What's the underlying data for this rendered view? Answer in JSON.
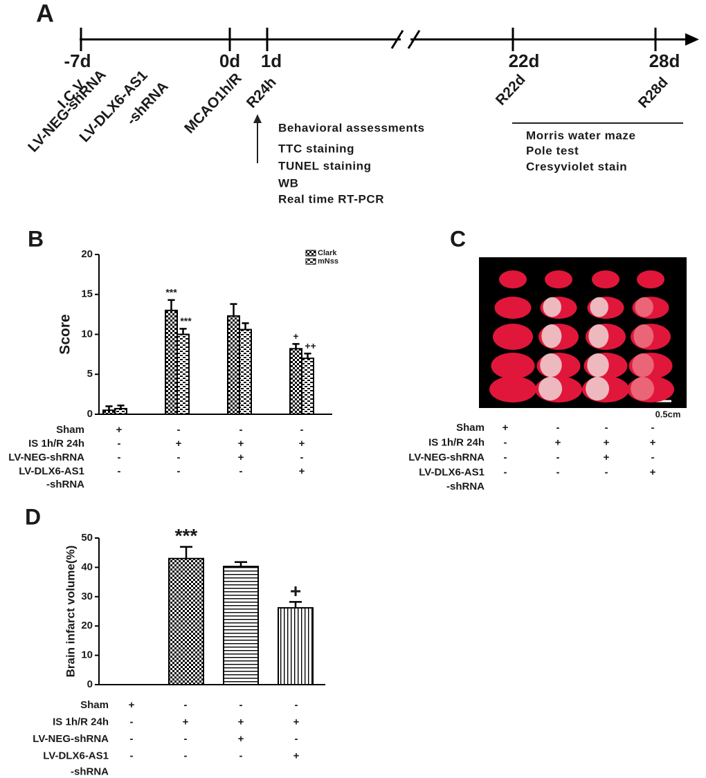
{
  "panels": {
    "a": "A",
    "b": "B",
    "c": "C",
    "d": "D"
  },
  "timeline": {
    "ticks": [
      "-7d",
      "0d",
      "1d",
      "22d",
      "28d"
    ],
    "rotated_labels": [
      "I.C.V",
      "LV-NEG-shRNA",
      "LV-DLX6-AS1",
      "-shRNA",
      "MCAO1h/R",
      "R24h",
      "R22d",
      "R28d"
    ],
    "assessments_24h": [
      "Behavioral assessments",
      "TTC staining",
      "TUNEL staining",
      "WB",
      "Real time RT-PCR"
    ],
    "assessments_late": [
      "Morris water maze",
      "Pole test",
      "Cresyviolet stain"
    ]
  },
  "photo": {
    "scale_bar": "0.5cm",
    "conditions": [
      {
        "label": [
          "Sham"
        ],
        "marks": [
          "+",
          "-",
          "-",
          "-"
        ]
      },
      {
        "label": [
          "IS 1h/R 24h"
        ],
        "marks": [
          "-",
          "+",
          "+",
          "+"
        ]
      },
      {
        "label": [
          "LV-NEG-shRNA"
        ],
        "marks": [
          "-",
          "-",
          "+",
          "-"
        ]
      },
      {
        "label": [
          "LV-DLX6-AS1",
          "-shRNA"
        ],
        "marks": [
          "-",
          "-",
          "-",
          "+"
        ]
      }
    ]
  },
  "chart_data": [
    {
      "type": "bar",
      "y_label": "Score",
      "categories": [
        null,
        null,
        null,
        null
      ],
      "series": [
        {
          "name": "Clark",
          "pattern": "checker",
          "values": [
            0.5,
            13,
            12.3,
            8.2
          ],
          "errors": [
            0.5,
            1.3,
            1.5,
            0.6
          ],
          "annotations": [
            null,
            "***",
            null,
            "+"
          ]
        },
        {
          "name": "mNss",
          "pattern": "brick",
          "values": [
            0.7,
            10,
            10.6,
            7.0
          ],
          "errors": [
            0.4,
            0.7,
            0.8,
            0.6
          ],
          "annotations": [
            null,
            "***",
            null,
            "++"
          ]
        }
      ],
      "ylim": [
        0,
        20
      ],
      "yticks": [
        0,
        5,
        10,
        15,
        20
      ],
      "legend": "top-right",
      "conditions": [
        {
          "label": [
            "Sham"
          ],
          "marks": [
            "+",
            "-",
            "-",
            "-"
          ]
        },
        {
          "label": [
            "IS 1h/R 24h"
          ],
          "marks": [
            "-",
            "+",
            "+",
            "+"
          ]
        },
        {
          "label": [
            "LV-NEG-shRNA"
          ],
          "marks": [
            "-",
            "-",
            "+",
            "-"
          ]
        },
        {
          "label": [
            "LV-DLX6-AS1",
            "-shRNA"
          ],
          "marks": [
            "-",
            "-",
            "-",
            "+"
          ]
        }
      ]
    },
    {
      "type": "bar",
      "y_label": "Brain infarct volume(%)",
      "categories": [
        null,
        null,
        null,
        null
      ],
      "values": [
        0,
        43,
        40.3,
        26.2
      ],
      "errors": [
        null,
        4,
        1.5,
        2
      ],
      "patterns": [
        "checker",
        "checker",
        "hlines",
        "vlines"
      ],
      "annotations": [
        null,
        "***",
        null,
        "+"
      ],
      "ylim": [
        0,
        50
      ],
      "yticks": [
        0,
        10,
        20,
        30,
        40,
        50
      ],
      "conditions": [
        {
          "label": [
            "Sham"
          ],
          "marks": [
            "+",
            "-",
            "-",
            "-"
          ]
        },
        {
          "label": [
            "IS 1h/R 24h"
          ],
          "marks": [
            "-",
            "+",
            "+",
            "+"
          ]
        },
        {
          "label": [
            "LV-NEG-shRNA"
          ],
          "marks": [
            "-",
            "-",
            "+",
            "-"
          ]
        },
        {
          "label": [
            "LV-DLX6-AS1",
            "-shRNA"
          ],
          "marks": [
            "-",
            "-",
            "-",
            "+"
          ]
        }
      ]
    }
  ]
}
